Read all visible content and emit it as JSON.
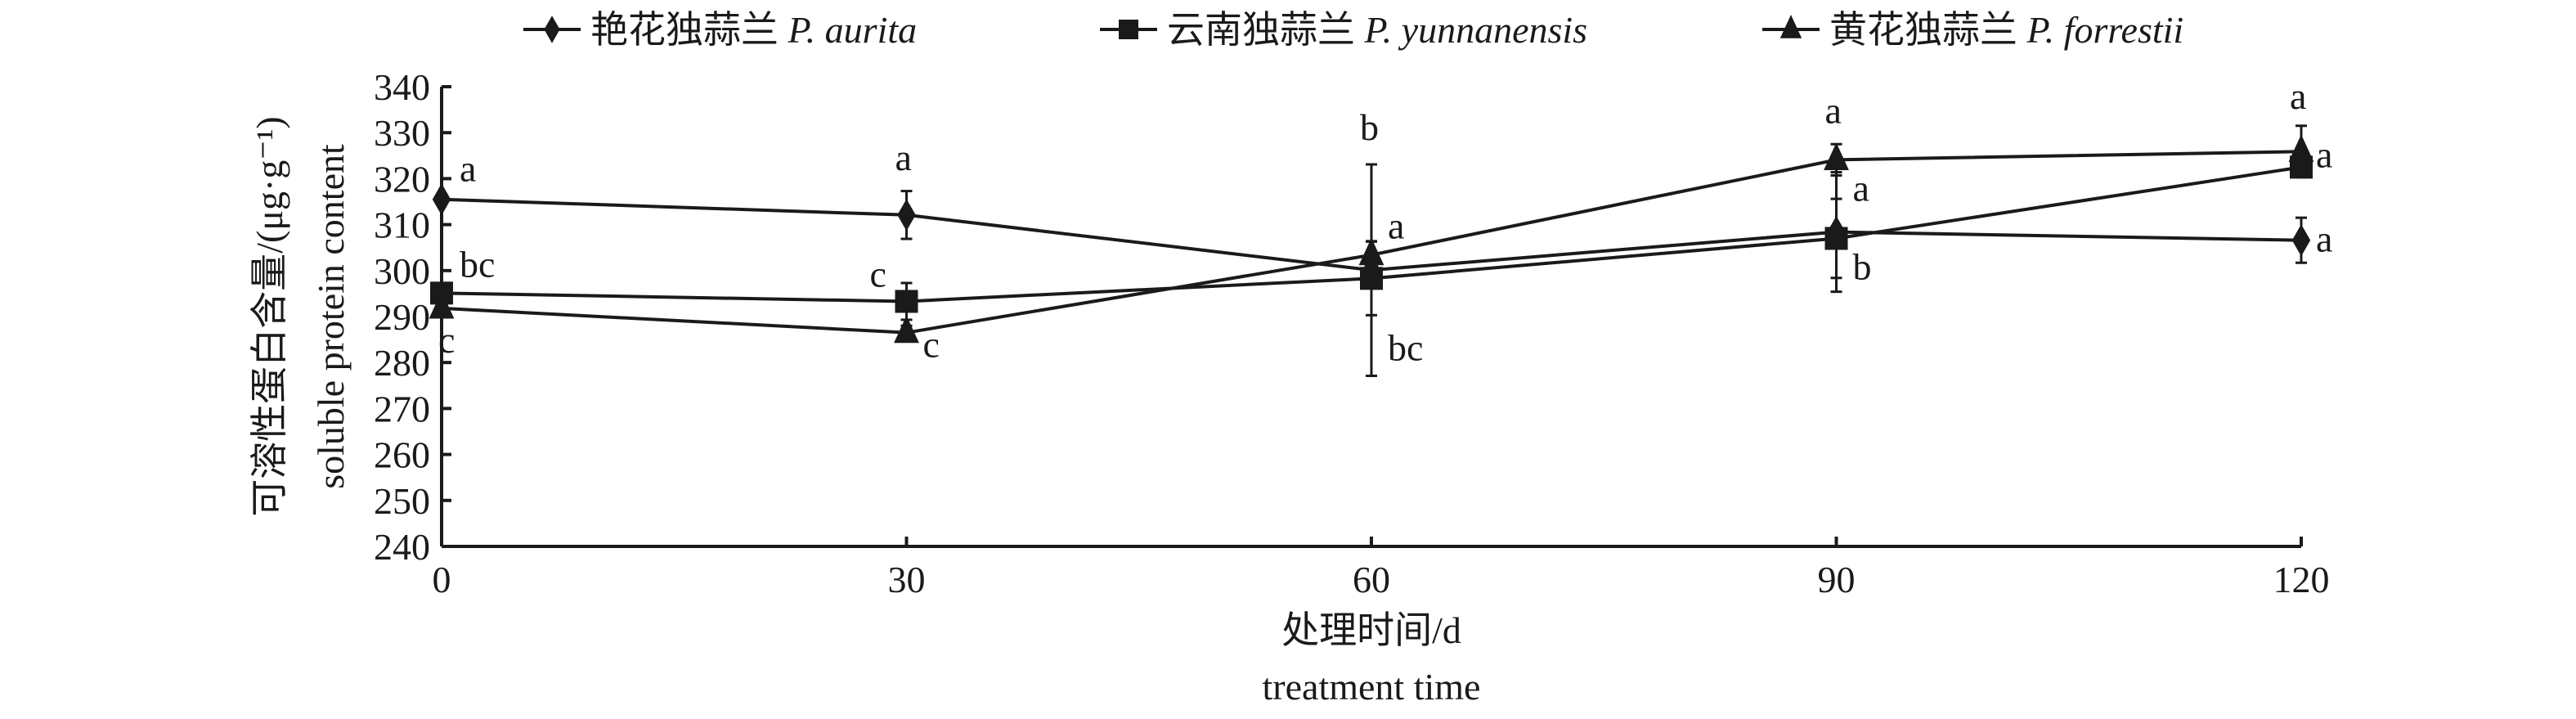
{
  "chart_data": {
    "type": "line",
    "xlabel": "处理时间/d",
    "xlabel_en": "treatment time",
    "ylabel": "可溶性蛋白含量/(μg·g⁻¹)",
    "ylabel_en": "soluble protein content",
    "xlim": [
      0,
      120
    ],
    "ylim": [
      240,
      340
    ],
    "x": [
      0,
      30,
      60,
      90,
      120
    ],
    "xticks": [
      "0",
      "30",
      "60",
      "90",
      "120"
    ],
    "yticks": [
      "240",
      "250",
      "260",
      "270",
      "280",
      "290",
      "300",
      "310",
      "320",
      "330",
      "340"
    ],
    "grid": false,
    "legend_position": "top",
    "series": [
      {
        "name": "艳花独蒜兰 P. aurita",
        "cn": "艳花独蒜兰",
        "latin": "P. aurita",
        "marker": "diamond",
        "values": [
          315.5,
          312.1,
          300.1,
          308.4,
          306.6
        ],
        "errors": [
          0,
          5.2,
          23,
          13,
          4.9
        ],
        "letters": [
          "a",
          "a",
          "b",
          "a",
          "a"
        ]
      },
      {
        "name": "云南独蒜兰 P. yunnanensis",
        "cn": "云南独蒜兰",
        "latin": "P. yunnanensis",
        "marker": "square",
        "values": [
          295.1,
          293.3,
          298.3,
          307.0,
          322.5
        ],
        "errors": [
          0,
          4,
          8,
          8.6,
          2
        ],
        "letters": [
          "bc",
          "c",
          "bc",
          "b",
          "a"
        ]
      },
      {
        "name": "黄花独蒜兰 P. forrestii",
        "cn": "黄花独蒜兰",
        "latin": "P. forrestii",
        "marker": "triangle",
        "values": [
          291.8,
          286.5,
          303.4,
          324.1,
          325.9
        ],
        "errors": [
          0,
          1.5,
          3,
          3.4,
          5.6
        ],
        "letters": [
          "c",
          "c",
          "a",
          "a",
          "a"
        ]
      }
    ]
  }
}
